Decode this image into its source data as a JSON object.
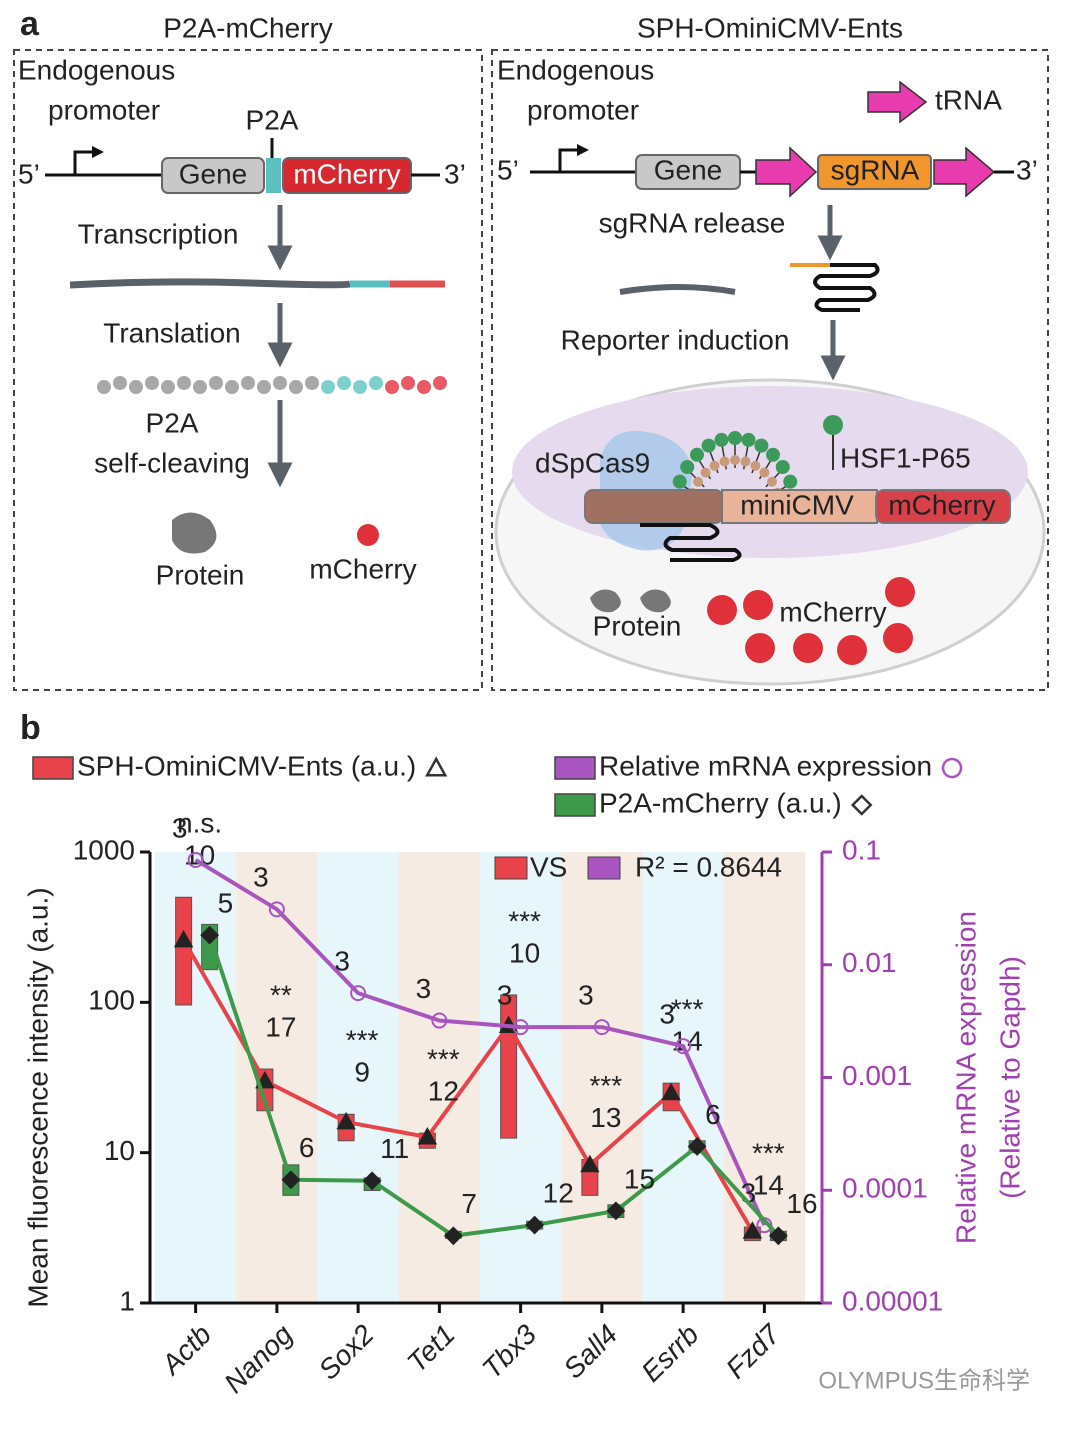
{
  "panel_a": {
    "label": "a",
    "left": {
      "title": "P2A-mCherry",
      "promoter": [
        "Endogenous",
        "promoter"
      ],
      "p2a": "P2A",
      "five": "5’",
      "gene": "Gene",
      "reporter": "mCherry",
      "three": "3’",
      "steps": [
        "Transcription",
        "Translation",
        "P2A",
        "self-cleaving"
      ],
      "products": [
        "Protein",
        "mCherry"
      ]
    },
    "right": {
      "title": "SPH-OminiCMV-Ents",
      "promoter": [
        "Endogenous",
        "promoter"
      ],
      "trna": "tRNA",
      "five": "5’",
      "gene": "Gene",
      "sgrna": "sgRNA",
      "three": "3’",
      "steps": [
        "sgRNA release",
        "Reporter induction"
      ],
      "cas9": "dSpCas9",
      "activator": "HSF1-P65",
      "promoter_element": "miniCMV",
      "reporter": "mCherry",
      "products": [
        "Protein",
        "mCherry"
      ]
    }
  },
  "panel_b": {
    "label": "b"
  },
  "chart_data": {
    "type": "line",
    "y_label": "Mean fluorescence intensity (a.u.)",
    "y2_label": [
      "Relative mRNA expression",
      "(Relative to Gapdh)"
    ],
    "categories": [
      "Actb",
      "Nanog",
      "Sox2",
      "Tet1",
      "Tbx3",
      "Sall4",
      "Esrrb",
      "Fzd7"
    ],
    "log_scale": true,
    "ylim": [
      1,
      1000
    ],
    "yticks": [
      1,
      10,
      100,
      1000
    ],
    "y2lim": [
      1e-05,
      0.1
    ],
    "y2ticks": [
      1e-05,
      0.0001,
      0.001,
      0.01,
      0.1
    ],
    "y2_color": "#a040b0",
    "series": [
      {
        "name": "SPH-OminiCMV-Ents (a.u.)",
        "color": "#e8434a",
        "marker": "triangle",
        "values": [
          260,
          30,
          16,
          12.7,
          70,
          8.3,
          25,
          3
        ],
        "box_low": [
          96,
          19,
          12,
          10.7,
          12.5,
          5.2,
          19,
          2.6
        ],
        "box_high": [
          500,
          36,
          18,
          13.5,
          112,
          9,
          29,
          3.2
        ],
        "n": [
          "10",
          "17",
          "9",
          "12",
          "10",
          "13",
          "14",
          "14"
        ]
      },
      {
        "name": "Relative mRNA expression",
        "color": "#a855c0",
        "marker": "circle",
        "axis": "y2",
        "values": [
          0.085,
          0.031,
          0.0056,
          0.0032,
          0.0028,
          0.0028,
          0.0019,
          4.9e-05
        ],
        "n": [
          "3",
          "3",
          "3",
          "3",
          "3",
          "3",
          "3",
          "3"
        ]
      },
      {
        "name": "P2A-mCherry (a.u.)",
        "color": "#3d9a4a",
        "marker": "diamond",
        "values": [
          280,
          6.6,
          6.5,
          2.8,
          3.3,
          4.1,
          11,
          2.8
        ],
        "box_low": [
          165,
          5.2,
          5.6,
          2.7,
          3.1,
          3.7,
          10,
          2.6
        ],
        "box_high": [
          330,
          8.3,
          6.8,
          3,
          3.5,
          4.5,
          12,
          3
        ],
        "n": [
          "5",
          "6",
          "11",
          "7",
          "12",
          "15",
          "6",
          "16"
        ]
      }
    ],
    "significance": [
      "n.s.",
      "**",
      "***",
      "***",
      "***",
      "***",
      "***",
      "***"
    ],
    "comparison_label": "VS",
    "r_squared_label": "R² = 0.8644",
    "band_colors": [
      "#e6f6fa",
      "#f6ebe2"
    ]
  },
  "watermark": "OLYMPUS生命科学"
}
